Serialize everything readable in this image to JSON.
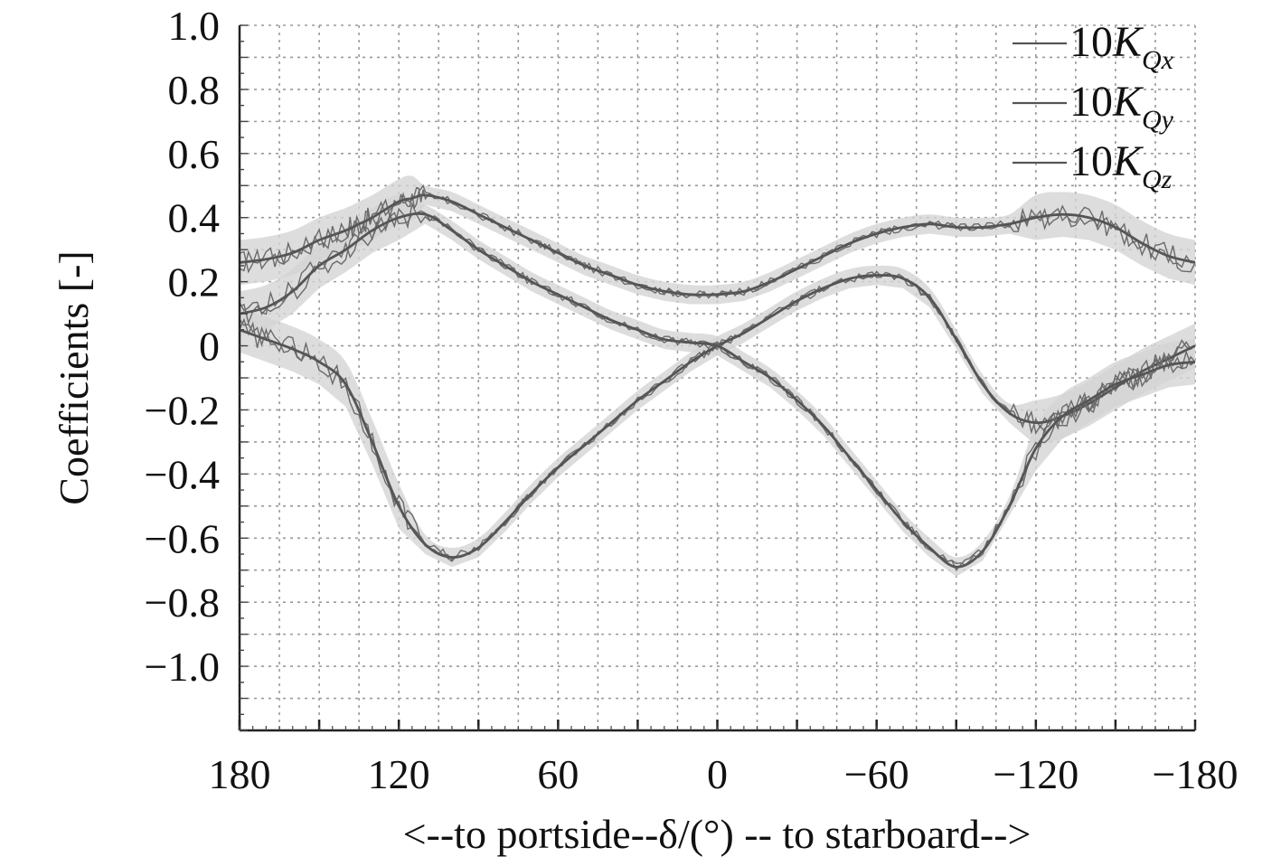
{
  "chart_data": {
    "type": "line",
    "title": "",
    "xlabel": "<--to portside--δ/(°) -- to starboard-->",
    "ylabel": "Coefficients [-]",
    "xlim": [
      180,
      -180
    ],
    "ylim": [
      -1.2,
      1.0
    ],
    "xticks": [
      180,
      150,
      120,
      90,
      60,
      30,
      0,
      -30,
      -60,
      -90,
      -120,
      -150,
      -180
    ],
    "xtick_labels": [
      {
        "value": 180,
        "label": "180"
      },
      {
        "value": 120,
        "label": "120"
      },
      {
        "value": 60,
        "label": "60"
      },
      {
        "value": 0,
        "label": "0"
      },
      {
        "value": -60,
        "label": "−60"
      },
      {
        "value": -120,
        "label": "−120"
      },
      {
        "value": -180,
        "label": "−180"
      }
    ],
    "ytick_labels": [
      {
        "value": 1.0,
        "label": "1.0"
      },
      {
        "value": 0.8,
        "label": "0.8"
      },
      {
        "value": 0.6,
        "label": "0.6"
      },
      {
        "value": 0.4,
        "label": "0.4"
      },
      {
        "value": 0.2,
        "label": "0.2"
      },
      {
        "value": 0,
        "label": "0"
      },
      {
        "value": -0.2,
        "label": "−0.2"
      },
      {
        "value": -0.4,
        "label": "−0.4"
      },
      {
        "value": -0.6,
        "label": "−0.6"
      },
      {
        "value": -0.8,
        "label": "−0.8"
      },
      {
        "value": -1.0,
        "label": "−1.0"
      }
    ],
    "grid": true,
    "legend_position": "top-right",
    "line_color": "#555555",
    "band_color": "#d4d4d4",
    "series": [
      {
        "name": "10K_Qx",
        "legend_main": "10K",
        "legend_sub": "Qx",
        "x": [
          180,
          170,
          160,
          150,
          140,
          135,
          130,
          120,
          115,
          110,
          100,
          90,
          80,
          70,
          60,
          50,
          40,
          30,
          20,
          10,
          0,
          -10,
          -20,
          -30,
          -40,
          -50,
          -60,
          -70,
          -80,
          -90,
          -100,
          -110,
          -120,
          -130,
          -140,
          -150,
          -160,
          -170,
          -180
        ],
        "y": [
          0.26,
          0.27,
          0.29,
          0.33,
          0.36,
          0.38,
          0.4,
          0.45,
          0.46,
          0.47,
          0.45,
          0.41,
          0.37,
          0.33,
          0.29,
          0.25,
          0.22,
          0.19,
          0.17,
          0.16,
          0.16,
          0.17,
          0.2,
          0.24,
          0.28,
          0.32,
          0.35,
          0.37,
          0.38,
          0.37,
          0.37,
          0.38,
          0.4,
          0.41,
          0.4,
          0.37,
          0.32,
          0.28,
          0.26
        ]
      },
      {
        "name": "10K_Qy",
        "legend_main": "10K",
        "legend_sub": "Qy",
        "x": [
          180,
          170,
          160,
          150,
          140,
          130,
          120,
          110,
          100,
          90,
          80,
          70,
          60,
          50,
          40,
          30,
          20,
          10,
          0,
          -10,
          -20,
          -30,
          -40,
          -50,
          -60,
          -70,
          -80,
          -90,
          -100,
          -110,
          -120,
          -130,
          -140,
          -150,
          -160,
          -170,
          -180
        ],
        "y": [
          0.05,
          0.02,
          -0.01,
          -0.05,
          -0.12,
          -0.3,
          -0.5,
          -0.62,
          -0.66,
          -0.63,
          -0.55,
          -0.46,
          -0.38,
          -0.31,
          -0.24,
          -0.17,
          -0.11,
          -0.05,
          0.0,
          0.04,
          0.09,
          0.14,
          0.18,
          0.21,
          0.22,
          0.21,
          0.15,
          0.02,
          -0.12,
          -0.21,
          -0.24,
          -0.22,
          -0.18,
          -0.13,
          -0.08,
          -0.04,
          0.0
        ]
      },
      {
        "name": "10K_Qz",
        "legend_main": "10K",
        "legend_sub": "Qz",
        "x": [
          180,
          170,
          160,
          150,
          140,
          130,
          120,
          110,
          100,
          90,
          80,
          70,
          60,
          50,
          40,
          30,
          20,
          10,
          0,
          -10,
          -20,
          -30,
          -40,
          -50,
          -60,
          -70,
          -80,
          -90,
          -100,
          -110,
          -120,
          -130,
          -140,
          -150,
          -160,
          -170,
          -180
        ],
        "y": [
          0.1,
          0.12,
          0.17,
          0.25,
          0.3,
          0.36,
          0.4,
          0.41,
          0.36,
          0.3,
          0.25,
          0.2,
          0.16,
          0.12,
          0.08,
          0.05,
          0.02,
          0.01,
          0.0,
          -0.05,
          -0.1,
          -0.17,
          -0.25,
          -0.35,
          -0.45,
          -0.55,
          -0.63,
          -0.69,
          -0.64,
          -0.5,
          -0.32,
          -0.22,
          -0.17,
          -0.12,
          -0.09,
          -0.06,
          -0.05
        ]
      }
    ]
  }
}
